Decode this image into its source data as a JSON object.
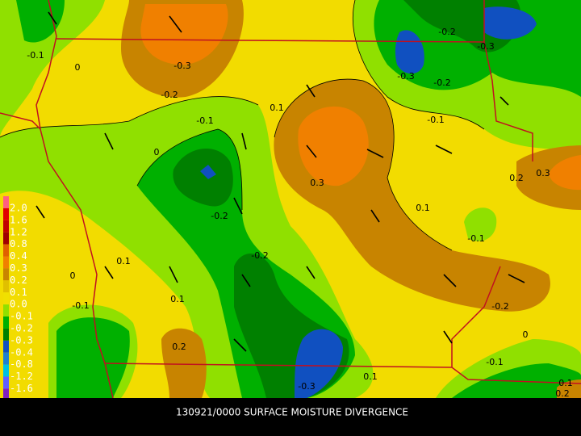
{
  "title": "130921/0000 SURFACE MOISTURE DIVERGENCE",
  "legend": {
    "labels": [
      "2.0",
      "1.6",
      "1.2",
      "0.8",
      "0.4",
      "0.3",
      "0.2",
      "0.1",
      "0.0",
      "-0.1",
      "-0.2",
      "-0.3",
      "-0.4",
      "-0.8",
      "-1.2",
      "-1.6"
    ]
  },
  "contour_labels": [
    "-0.1",
    "0",
    "-0.3",
    "-0.2",
    "0.1",
    "-0.1",
    "0",
    "0.3",
    "-0.2",
    "-0.2",
    "-0.3",
    "-0.3",
    "-0.2",
    "-0.1",
    "0.2",
    "0.3",
    "0.1",
    "-0.1",
    "0.1",
    "0",
    "-0.2",
    "-0.1",
    "0.1",
    "-0.2",
    "0",
    "0.2",
    "-0.1",
    "0.1",
    "-0.3",
    "0.1",
    "0.2"
  ]
}
